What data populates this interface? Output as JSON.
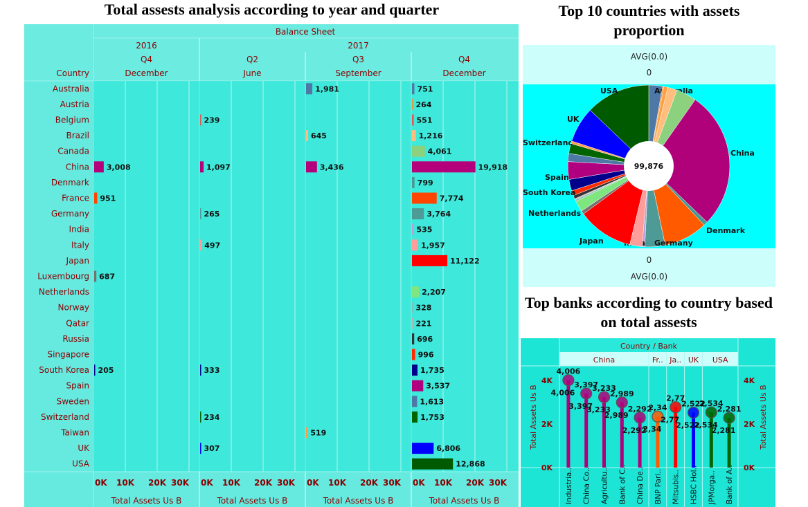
{
  "titles": {
    "left": "Total assests analysis according to year and quarter",
    "pie": "Top 10 countries with assets proportion",
    "banks": "Top banks according to country based on total assests"
  },
  "colors": {
    "panel_bg": "#66eae0",
    "pie_bg": "#00ffff",
    "header_bg": "#ccfffb",
    "axis_text": "#8b0000"
  },
  "chart_data": [
    {
      "type": "bar",
      "title": "Total assests analysis according to year and quarter",
      "header": "Balance Sheet",
      "row_header": "Country",
      "years": [
        {
          "label": "2016",
          "span": [
            0,
            0
          ]
        },
        {
          "label": "2017",
          "span": [
            1,
            3
          ]
        }
      ],
      "quarters": [
        "Q4",
        "Q2",
        "Q3",
        "Q4"
      ],
      "months": [
        "December",
        "June",
        "September",
        "December"
      ],
      "xlabel": "Total Assets Us B",
      "xticks": [
        "0K",
        "10K",
        "20K",
        "30K"
      ],
      "xlim": [
        0,
        30000
      ],
      "grid": true,
      "categories": [
        "Australia",
        "Austria",
        "Belgium",
        "Brazil",
        "Canada",
        "China",
        "Denmark",
        "France",
        "Germany",
        "India",
        "Italy",
        "Japan",
        "Luxembourg",
        "Netherlands",
        "Norway",
        "Qatar",
        "Russia",
        "Singapore",
        "South Korea",
        "Spain",
        "Sweden",
        "Switzerland",
        "Taiwan",
        "UK",
        "USA"
      ],
      "category_colors": {
        "Australia": "#4e79a7",
        "Austria": "#f28e2b",
        "Belgium": "#e15759",
        "Brazil": "#ffbe7d",
        "Canada": "#8cd17d",
        "China": "#b5007c",
        "Denmark": "#499894",
        "France": "#ff4500",
        "Germany": "#4e9a96",
        "India": "#b6a2d8",
        "Italy": "#ff9d9a",
        "Japan": "#ff0000",
        "Luxembourg": "#79706e",
        "Netherlands": "#7fe67f",
        "Norway": "#86bcb6",
        "Qatar": "#bab0ac",
        "Russia": "#333333",
        "Singapore": "#ff2a00",
        "South Korea": "#00008b",
        "Spain": "#b0007f",
        "Sweden": "#4e79a7",
        "Switzerland": "#006400",
        "Taiwan": "#ff9e4a",
        "UK": "#0000ff",
        "USA": "#005a00"
      },
      "series": [
        {
          "values": [
            null,
            null,
            null,
            null,
            null,
            3008,
            null,
            951,
            null,
            null,
            null,
            null,
            687,
            null,
            null,
            null,
            null,
            null,
            205,
            null,
            null,
            null,
            null,
            null,
            null
          ]
        },
        {
          "values": [
            null,
            null,
            239,
            null,
            null,
            1097,
            null,
            null,
            265,
            null,
            497,
            null,
            null,
            null,
            null,
            null,
            null,
            null,
            333,
            null,
            null,
            234,
            null,
            307,
            null
          ]
        },
        {
          "values": [
            1981,
            null,
            null,
            645,
            null,
            3436,
            null,
            null,
            null,
            null,
            null,
            null,
            null,
            null,
            null,
            null,
            null,
            null,
            null,
            null,
            null,
            null,
            519,
            null,
            null
          ]
        },
        {
          "values": [
            751,
            264,
            551,
            1216,
            4061,
            19918,
            799,
            7774,
            3764,
            535,
            1957,
            11122,
            null,
            2207,
            328,
            221,
            696,
            996,
            1735,
            3537,
            1613,
            1753,
            null,
            6806,
            12868
          ]
        }
      ]
    },
    {
      "type": "pie",
      "title": "Top 10 countries with assets proportion",
      "top_label": "AVG(0.0)",
      "top_value": "0",
      "bottom_value": "0",
      "bottom_label": "AVG(0.0)",
      "total": "99,876",
      "slices": [
        {
          "label": "Australia",
          "value": 2732,
          "color": "#4e79a7",
          "show": true
        },
        {
          "label": "Austria",
          "value": 264,
          "color": "#f28e2b",
          "show": false
        },
        {
          "label": "Belgium",
          "value": 790,
          "color": "#ff9f40",
          "show": false
        },
        {
          "label": "Brazil",
          "value": 1861,
          "color": "#ffbe7d",
          "show": false
        },
        {
          "label": "Canada",
          "value": 4061,
          "color": "#8cd17d",
          "show": false
        },
        {
          "label": "China",
          "value": 27459,
          "color": "#b0007a",
          "show": true
        },
        {
          "label": "Denmark",
          "value": 799,
          "color": "#499894",
          "show": true
        },
        {
          "label": "France",
          "value": 8725,
          "color": "#ff5a00",
          "show": false
        },
        {
          "label": "Germany",
          "value": 4029,
          "color": "#4e9a96",
          "show": true
        },
        {
          "label": "India",
          "value": 535,
          "color": "#b6a2d8",
          "show": true
        },
        {
          "label": "Italy",
          "value": 2454,
          "color": "#ff9d9a",
          "show": false
        },
        {
          "label": "Japan",
          "value": 11122,
          "color": "#ff0000",
          "show": true
        },
        {
          "label": "Luxembourg",
          "value": 687,
          "color": "#79706e",
          "show": false
        },
        {
          "label": "Netherlands",
          "value": 2207,
          "color": "#7fe67f",
          "show": true
        },
        {
          "label": "Norway",
          "value": 328,
          "color": "#86bcb6",
          "show": false
        },
        {
          "label": "Qatar",
          "value": 221,
          "color": "#bab0ac",
          "show": false
        },
        {
          "label": "Russia",
          "value": 696,
          "color": "#333333",
          "show": false
        },
        {
          "label": "Singapore",
          "value": 996,
          "color": "#ff2a00",
          "show": false
        },
        {
          "label": "South Korea",
          "value": 2273,
          "color": "#00008b",
          "show": true
        },
        {
          "label": "Spain",
          "value": 3537,
          "color": "#b0007f",
          "show": true
        },
        {
          "label": "Sweden",
          "value": 1613,
          "color": "#4e79a7",
          "show": false
        },
        {
          "label": "Switzerland",
          "value": 1987,
          "color": "#006400",
          "show": true
        },
        {
          "label": "Taiwan",
          "value": 519,
          "color": "#ff9e4a",
          "show": false
        },
        {
          "label": "UK",
          "value": 7113,
          "color": "#0000ff",
          "show": true
        },
        {
          "label": "USA",
          "value": 12868,
          "color": "#005a00",
          "show": true
        }
      ]
    },
    {
      "type": "scatter",
      "subtype": "lollipop",
      "title": "Top banks according to country based on total assests",
      "header": "Country / Bank",
      "countries": [
        {
          "label": "China",
          "span": [
            0,
            4
          ]
        },
        {
          "label": "Fr..",
          "span": [
            5,
            5
          ]
        },
        {
          "label": "Ja..",
          "span": [
            6,
            6
          ]
        },
        {
          "label": "UK",
          "span": [
            7,
            7
          ]
        },
        {
          "label": "USA",
          "span": [
            8,
            9
          ]
        }
      ],
      "banks": [
        "Industria..",
        "China Co..",
        "Agricultu..",
        "Bank of C..",
        "China De..",
        "BNP Pari..",
        "Mitsubis..",
        "HSBC Hol..",
        "JPMorga..",
        "Bank of A.."
      ],
      "values": [
        4006,
        3397,
        3233,
        2989,
        2292,
        2340,
        2770,
        2522,
        2534,
        2281
      ],
      "labels": [
        "4,006",
        "3,397",
        "3,233",
        "2,989",
        "2,292",
        "2,34",
        "2,77",
        "2,522",
        "2,534",
        "2,281"
      ],
      "colors": [
        "#b0007a",
        "#b0007a",
        "#b0007a",
        "#b0007a",
        "#b0007a",
        "#ff5a00",
        "#ff0000",
        "#0000ff",
        "#006400",
        "#006400"
      ],
      "ylabel": "Total Assets Us B",
      "yticks": [
        "0K",
        "2K",
        "4K"
      ],
      "ylim": [
        0,
        4600
      ]
    }
  ]
}
